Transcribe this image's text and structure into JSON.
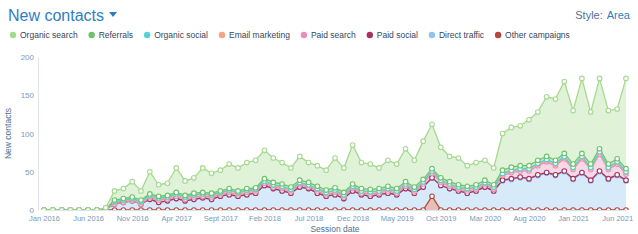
{
  "chart_data": {
    "type": "area",
    "title": "New contacts",
    "annotations": [
      "Style:",
      "Area"
    ],
    "x_label": "Session date",
    "y_label": "New contacts",
    "categories": [
      "Jan 2016",
      null,
      null,
      null,
      null,
      "Jun 2016",
      null,
      null,
      null,
      null,
      "Nov 2016",
      null,
      null,
      null,
      null,
      "Apr 2017",
      null,
      null,
      null,
      null,
      "Sept 2017",
      null,
      null,
      null,
      null,
      "Feb 2018",
      null,
      null,
      null,
      null,
      "Jul 2018",
      null,
      null,
      null,
      null,
      "Dec 2018",
      null,
      null,
      null,
      null,
      "May 2019",
      null,
      null,
      null,
      null,
      "Oct 2019",
      null,
      null,
      null,
      null,
      "Mar 2020",
      null,
      null,
      null,
      null,
      "Aug 2020",
      null,
      null,
      null,
      null,
      "Jan 2021",
      null,
      null,
      null,
      null,
      "Jun 2021",
      null
    ],
    "series": [
      {
        "name": "Organic search",
        "color": "#a6d98f",
        "values": [
          0,
          0,
          0,
          0,
          0,
          0,
          0,
          2,
          12,
          13,
          20,
          12,
          29,
          15,
          16,
          32,
          19,
          20,
          32,
          26,
          27,
          32,
          30,
          34,
          36,
          37,
          32,
          28,
          25,
          31,
          26,
          27,
          26,
          39,
          32,
          51,
          34,
          33,
          27,
          34,
          32,
          43,
          35,
          50,
          58,
          40,
          33,
          35,
          27,
          29,
          26,
          22,
          48,
          52,
          52,
          60,
          63,
          78,
          80,
          94,
          70,
          98,
          68,
          92,
          70,
          65,
          118
        ]
      },
      {
        "name": "Referrals",
        "color": "#6cc46a",
        "values": [
          0,
          0,
          0,
          0,
          0,
          0,
          0,
          0,
          2,
          2,
          2,
          2,
          2,
          2,
          2,
          2,
          2,
          2,
          2,
          2,
          2,
          2,
          2,
          2,
          2,
          3,
          3,
          3,
          3,
          3,
          3,
          3,
          3,
          3,
          3,
          3,
          3,
          3,
          3,
          3,
          3,
          3,
          3,
          3,
          3,
          3,
          3,
          3,
          3,
          3,
          3,
          3,
          4,
          4,
          4,
          4,
          4,
          4,
          4,
          4,
          4,
          4,
          4,
          4,
          4,
          4,
          4
        ]
      },
      {
        "name": "Organic social",
        "color": "#55d0d6",
        "values": [
          0,
          0,
          0,
          0,
          0,
          0,
          0,
          0,
          1,
          1,
          1,
          1,
          1,
          1,
          1,
          1,
          1,
          1,
          1,
          1,
          1,
          1,
          1,
          1,
          1,
          1,
          1,
          1,
          1,
          1,
          1,
          1,
          1,
          1,
          1,
          1,
          1,
          1,
          1,
          1,
          1,
          1,
          1,
          1,
          1,
          1,
          1,
          1,
          1,
          1,
          1,
          1,
          1,
          1,
          1,
          1,
          1,
          1,
          1,
          1,
          1,
          1,
          1,
          1,
          1,
          1,
          1
        ]
      },
      {
        "name": "Email marketing",
        "color": "#f4a58a",
        "values": [
          0,
          0,
          0,
          0,
          0,
          0,
          0,
          0,
          2,
          2,
          2,
          2,
          2,
          2,
          2,
          2,
          2,
          2,
          2,
          2,
          2,
          2,
          2,
          2,
          2,
          2,
          2,
          2,
          2,
          2,
          2,
          2,
          2,
          2,
          2,
          2,
          2,
          2,
          2,
          2,
          2,
          2,
          2,
          2,
          2,
          2,
          2,
          2,
          2,
          2,
          2,
          2,
          2,
          2,
          2,
          2,
          2,
          2,
          2,
          2,
          2,
          2,
          2,
          2,
          2,
          2,
          2
        ]
      },
      {
        "name": "Paid search",
        "color": "#ea8fb7",
        "values": [
          0,
          0,
          0,
          0,
          0,
          0,
          0,
          0,
          0,
          0,
          0,
          0,
          2,
          3,
          2,
          3,
          2,
          3,
          2,
          3,
          2,
          3,
          2,
          3,
          2,
          3,
          2,
          3,
          2,
          3,
          2,
          3,
          2,
          3,
          2,
          3,
          2,
          3,
          2,
          3,
          2,
          3,
          2,
          4,
          6,
          4,
          3,
          2,
          3,
          2,
          3,
          2,
          6,
          8,
          8,
          10,
          12,
          14,
          12,
          16,
          12,
          18,
          14,
          22,
          12,
          14,
          8
        ]
      },
      {
        "name": "Paid social",
        "color": "#a3345f",
        "values": [
          0,
          0,
          0,
          0,
          0,
          0,
          0,
          0,
          0,
          0,
          0,
          0,
          0,
          0,
          0,
          0,
          0,
          0,
          0,
          0,
          0,
          0,
          0,
          0,
          0,
          0,
          0,
          0,
          0,
          0,
          0,
          0,
          0,
          0,
          0,
          0,
          0,
          0,
          0,
          0,
          0,
          0,
          0,
          0,
          0,
          0,
          0,
          0,
          0,
          0,
          0,
          0,
          1,
          1,
          1,
          1,
          1,
          1,
          1,
          1,
          1,
          1,
          1,
          1,
          1,
          1,
          1
        ]
      },
      {
        "name": "Direct traffic",
        "color": "#8cc4f2",
        "values": [
          0,
          0,
          0,
          0,
          0,
          0,
          0,
          1,
          8,
          10,
          12,
          8,
          14,
          10,
          12,
          15,
          12,
          14,
          16,
          14,
          18,
          20,
          18,
          20,
          22,
          32,
          28,
          25,
          22,
          30,
          28,
          22,
          18,
          20,
          15,
          25,
          20,
          18,
          20,
          22,
          20,
          28,
          22,
          30,
          24,
          32,
          28,
          25,
          22,
          25,
          30,
          25,
          38,
          40,
          42,
          40,
          45,
          48,
          45,
          50,
          40,
          48,
          38,
          50,
          40,
          45,
          38
        ]
      },
      {
        "name": "Other campaigns",
        "color": "#b5473a",
        "values": [
          0,
          0,
          0,
          0,
          0,
          0,
          0,
          0,
          0,
          0,
          0,
          0,
          0,
          0,
          0,
          0,
          0,
          0,
          0,
          0,
          0,
          0,
          0,
          0,
          0,
          0,
          0,
          0,
          0,
          0,
          0,
          0,
          0,
          0,
          0,
          0,
          0,
          0,
          0,
          0,
          0,
          0,
          0,
          0,
          18,
          0,
          0,
          0,
          0,
          0,
          0,
          0,
          0,
          0,
          0,
          0,
          0,
          0,
          0,
          0,
          0,
          0,
          0,
          0,
          0,
          0,
          0
        ]
      }
    ],
    "ylim": [
      0,
      200
    ],
    "yticks": [
      0,
      50,
      100,
      150,
      200
    ],
    "grid": false,
    "stacked": true,
    "legend": "top",
    "marker": "circle"
  }
}
